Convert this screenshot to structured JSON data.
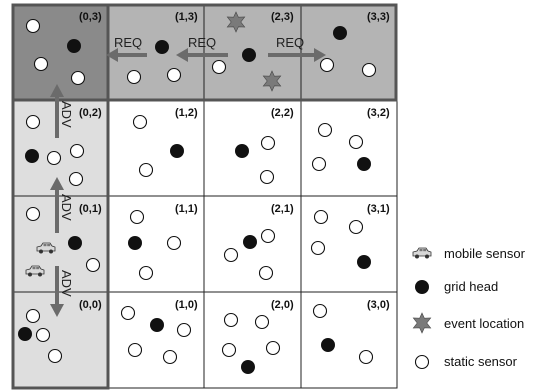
{
  "grid": {
    "cells": [
      {
        "col": 0,
        "row": 3,
        "label": "(0,3)",
        "shade": "dark"
      },
      {
        "col": 1,
        "row": 3,
        "label": "(1,3)",
        "shade": "medium"
      },
      {
        "col": 2,
        "row": 3,
        "label": "(2,3)",
        "shade": "medium"
      },
      {
        "col": 3,
        "row": 3,
        "label": "(3,3)",
        "shade": "medium"
      },
      {
        "col": 0,
        "row": 2,
        "label": "(0,2)",
        "shade": "light"
      },
      {
        "col": 1,
        "row": 2,
        "label": "(1,2)",
        "shade": "white"
      },
      {
        "col": 2,
        "row": 2,
        "label": "(2,2)",
        "shade": "white"
      },
      {
        "col": 3,
        "row": 2,
        "label": "(3,2)",
        "shade": "white"
      },
      {
        "col": 0,
        "row": 1,
        "label": "(0,1)",
        "shade": "light"
      },
      {
        "col": 1,
        "row": 1,
        "label": "(1,1)",
        "shade": "white"
      },
      {
        "col": 2,
        "row": 1,
        "label": "(2,1)",
        "shade": "white"
      },
      {
        "col": 3,
        "row": 1,
        "label": "(3,1)",
        "shade": "white"
      },
      {
        "col": 0,
        "row": 0,
        "label": "(0,0)",
        "shade": "light"
      },
      {
        "col": 1,
        "row": 0,
        "label": "(1,0)",
        "shade": "white"
      },
      {
        "col": 2,
        "row": 0,
        "label": "(2,0)",
        "shade": "white"
      },
      {
        "col": 3,
        "row": 0,
        "label": "(3,0)",
        "shade": "white"
      }
    ],
    "arrows": {
      "req_1": "REQ",
      "req_2": "REQ",
      "req_3": "REQ",
      "adv_1": "ADV",
      "adv_2": "ADV",
      "adv_3": "ADV"
    }
  },
  "legend": {
    "mobile_sensor": "mobile sensor",
    "grid_head": "grid head",
    "event_location": "event location",
    "static_sensor": "static sensor"
  },
  "colors": {
    "dark_cell": "#8a8a8a",
    "medium_cell": "#b4b4b4",
    "light_cell": "#dedede",
    "arrow": "#6b6b6b",
    "event": "#7a7a7a"
  }
}
